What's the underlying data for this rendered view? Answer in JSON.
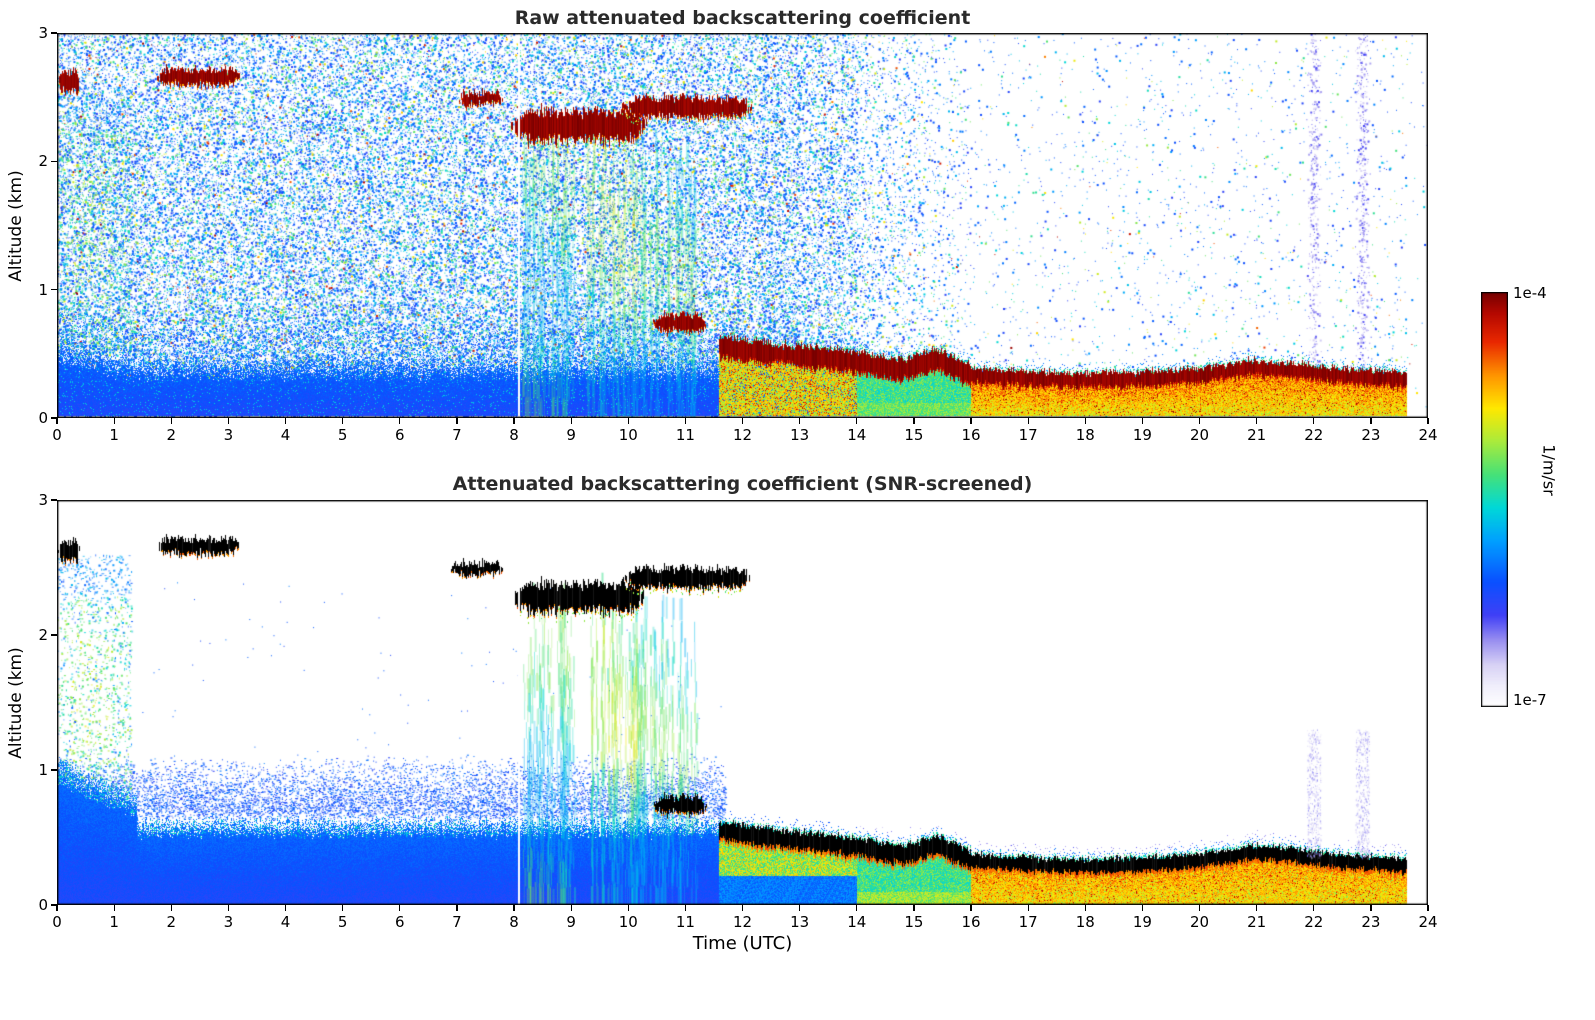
{
  "chart_data": [
    {
      "type": "heatmap",
      "panel": "raw",
      "title": "Raw attenuated backscattering coefficient",
      "xlabel": "",
      "ylabel": "Altitude (km)",
      "xlim": [
        0,
        24
      ],
      "ylim": [
        0,
        3
      ],
      "xticks": [
        0,
        1,
        2,
        3,
        4,
        5,
        6,
        7,
        8,
        9,
        10,
        11,
        12,
        13,
        14,
        15,
        16,
        17,
        18,
        19,
        20,
        21,
        22,
        23,
        24
      ],
      "yticks": [
        0,
        1,
        2,
        3
      ],
      "grid": false,
      "colorbar": {
        "max_label": "1e-4",
        "min_label": "1e-7",
        "units": "1/m/sr",
        "scale": "log"
      },
      "features": {
        "description": "Dense blue/cyan noise speckle 0-14 UTC fading to white after 16 UTC, sparse faint columns near 22 and 22.85 UTC",
        "column_artifacts_x": [
          22.0,
          22.85
        ],
        "data_gap_x": 8.07,
        "data_end_x": 23.62,
        "surface_layer": {
          "x": [
            0,
            12
          ],
          "top_km": 0.5
        },
        "left_aerosol": {
          "x": [
            0,
            1.3
          ],
          "top_km": 2.5
        },
        "clouds": [
          {
            "x": [
              0.02,
              0.38
            ],
            "alt_km": 2.62,
            "thickness_km": 0.18
          },
          {
            "x": [
              1.75,
              3.2
            ],
            "alt_km": 2.66,
            "thickness_km": 0.14
          },
          {
            "x": [
              7.05,
              7.78
            ],
            "alt_km": 2.49,
            "thickness_km": 0.11
          },
          {
            "x": [
              7.95,
              10.3
            ],
            "alt_km": 2.28,
            "thickness_km": 0.27,
            "virga": true
          },
          {
            "x": [
              9.9,
              12.15
            ],
            "alt_km": 2.42,
            "thickness_km": 0.17,
            "virga": true
          },
          {
            "x": [
              10.45,
              11.35
            ],
            "alt_km": 0.74,
            "thickness_km": 0.14
          }
        ],
        "precip_plumes": [
          {
            "x": [
              8.15,
              9.05
            ],
            "top_km": 2.2,
            "intensity": "moderate"
          },
          {
            "x": [
              9.25,
              10.15
            ],
            "top_km": 2.25,
            "intensity": "strong"
          },
          {
            "x": [
              10.15,
              11.2
            ],
            "top_km": 2.1,
            "intensity": "moderate"
          }
        ],
        "boundary_layer_band": [
          [
            11.6,
            0.55
          ],
          [
            12.5,
            0.5
          ],
          [
            13.2,
            0.47
          ],
          [
            14.0,
            0.43
          ],
          [
            14.8,
            0.37
          ],
          [
            15.4,
            0.45
          ],
          [
            16.0,
            0.33
          ],
          [
            17.0,
            0.3
          ],
          [
            18.0,
            0.29
          ],
          [
            19.0,
            0.3
          ],
          [
            20.0,
            0.33
          ],
          [
            20.9,
            0.39
          ],
          [
            21.6,
            0.37
          ],
          [
            22.3,
            0.33
          ],
          [
            23.0,
            0.31
          ],
          [
            23.62,
            0.29
          ]
        ]
      }
    },
    {
      "type": "heatmap",
      "panel": "snr_screened",
      "title": "Attenuated backscattering coefficient (SNR-screened)",
      "xlabel": "Time (UTC)",
      "ylabel": "Altitude (km)",
      "xlim": [
        0,
        24
      ],
      "ylim": [
        0,
        3
      ],
      "xticks": [
        0,
        1,
        2,
        3,
        4,
        5,
        6,
        7,
        8,
        9,
        10,
        11,
        12,
        13,
        14,
        15,
        16,
        17,
        18,
        19,
        20,
        21,
        22,
        23,
        24
      ],
      "yticks": [
        0,
        1,
        2,
        3
      ],
      "grid": false,
      "colorbar": {
        "max_label": "1e-4",
        "min_label": "1e-7",
        "units": "1/m/sr",
        "scale": "log"
      },
      "features": {
        "description": "Noise removed: white background, saturated cloud echoes rendered black, solid blue boundary layer 0-0.6 km before 12 UTC, black/orange shallow layer after 12 UTC",
        "strong_echo_color": "black",
        "column_artifacts_x": [
          22.0,
          22.85
        ],
        "data_gap_x": 8.07,
        "data_end_x": 23.62,
        "surface_layer": {
          "x": [
            0,
            11.7
          ],
          "top_km": 0.62
        },
        "left_aerosol": {
          "x": [
            0,
            1.3
          ],
          "top_km": 2.5
        },
        "clouds": [
          {
            "x": [
              0.02,
              0.38
            ],
            "alt_km": 2.62,
            "thickness_km": 0.16
          },
          {
            "x": [
              1.75,
              3.2
            ],
            "alt_km": 2.66,
            "thickness_km": 0.13
          },
          {
            "x": [
              6.9,
              7.78
            ],
            "alt_km": 2.49,
            "thickness_km": 0.1
          },
          {
            "x": [
              7.95,
              10.3
            ],
            "alt_km": 2.28,
            "thickness_km": 0.24,
            "virga": true
          },
          {
            "x": [
              9.9,
              12.15
            ],
            "alt_km": 2.42,
            "thickness_km": 0.16,
            "virga": true
          },
          {
            "x": [
              10.45,
              11.35
            ],
            "alt_km": 0.74,
            "thickness_km": 0.13
          }
        ],
        "precip_plumes": [
          {
            "x": [
              8.15,
              9.05
            ],
            "top_km": 2.2,
            "intensity": "moderate"
          },
          {
            "x": [
              9.25,
              10.15
            ],
            "top_km": 2.25,
            "intensity": "strong"
          },
          {
            "x": [
              10.15,
              11.2
            ],
            "top_km": 2.1,
            "intensity": "moderate"
          }
        ],
        "boundary_layer_band": [
          [
            11.6,
            0.55
          ],
          [
            12.5,
            0.5
          ],
          [
            13.2,
            0.47
          ],
          [
            14.0,
            0.43
          ],
          [
            14.8,
            0.37
          ],
          [
            15.4,
            0.45
          ],
          [
            16.0,
            0.33
          ],
          [
            17.0,
            0.3
          ],
          [
            18.0,
            0.29
          ],
          [
            19.0,
            0.3
          ],
          [
            20.0,
            0.33
          ],
          [
            20.9,
            0.39
          ],
          [
            21.6,
            0.37
          ],
          [
            22.3,
            0.33
          ],
          [
            23.0,
            0.31
          ],
          [
            23.62,
            0.29
          ]
        ]
      }
    }
  ]
}
